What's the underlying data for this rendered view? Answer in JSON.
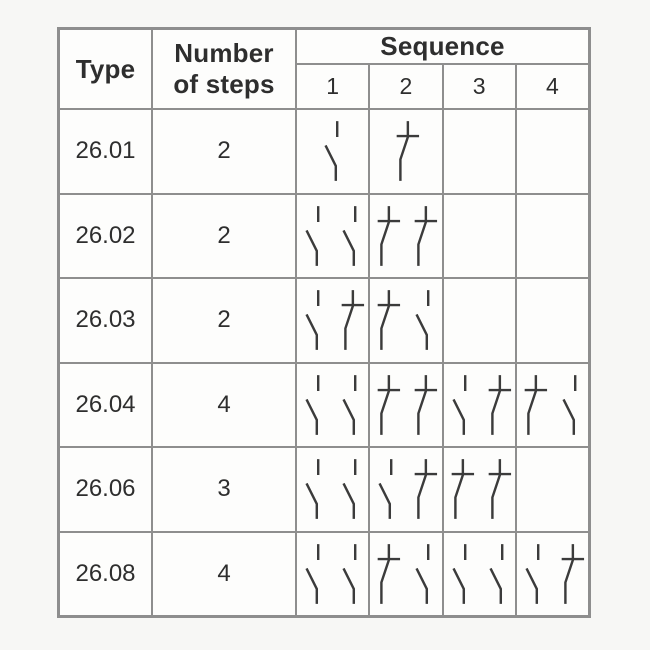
{
  "page": {
    "background_color": "#f7f7f5"
  },
  "table": {
    "border_color": "#8e8e8e",
    "cell_background": "#fdfdfc",
    "text_color": "#2e2e2e",
    "symbol_color": "#3b3b3b",
    "headers": {
      "type": "Type",
      "steps": "Number of steps",
      "sequence": "Sequence",
      "sequence_columns": [
        "1",
        "2",
        "3",
        "4"
      ]
    },
    "symbol_legend": {
      "open": "open-contact-symbol",
      "closed": "closed-contact-symbol"
    },
    "rows": [
      {
        "type": "26.01",
        "steps": "2",
        "sequences": [
          [
            "open"
          ],
          [
            "closed"
          ],
          [],
          []
        ]
      },
      {
        "type": "26.02",
        "steps": "2",
        "sequences": [
          [
            "open",
            "open"
          ],
          [
            "closed",
            "closed"
          ],
          [],
          []
        ]
      },
      {
        "type": "26.03",
        "steps": "2",
        "sequences": [
          [
            "open",
            "closed"
          ],
          [
            "closed",
            "open"
          ],
          [],
          []
        ]
      },
      {
        "type": "26.04",
        "steps": "4",
        "sequences": [
          [
            "open",
            "open"
          ],
          [
            "closed",
            "closed"
          ],
          [
            "open",
            "closed"
          ],
          [
            "closed",
            "open"
          ]
        ]
      },
      {
        "type": "26.06",
        "steps": "3",
        "sequences": [
          [
            "open",
            "open"
          ],
          [
            "open",
            "closed"
          ],
          [
            "closed",
            "closed"
          ],
          []
        ]
      },
      {
        "type": "26.08",
        "steps": "4",
        "sequences": [
          [
            "open",
            "open"
          ],
          [
            "closed",
            "open"
          ],
          [
            "open",
            "open"
          ],
          [
            "open",
            "closed"
          ]
        ]
      }
    ]
  }
}
